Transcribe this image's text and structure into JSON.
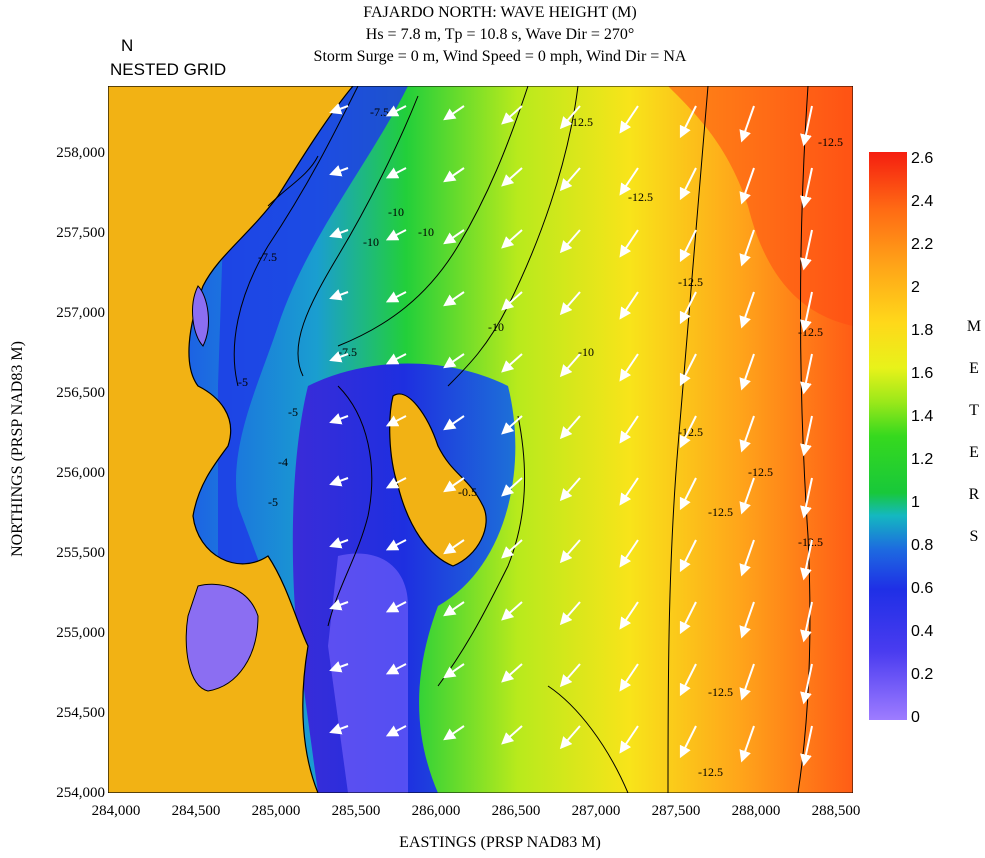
{
  "title": {
    "line1": "FAJARDO NORTH: WAVE HEIGHT (M)",
    "line2": "Hs = 7.8 m, Tp = 10.8 s, Wave Dir = 270°",
    "line3": "Storm Surge = 0 m, Wind Speed = 0 mph, Wind Dir = NA"
  },
  "corner_label": {
    "north": "N",
    "grid": "NESTED GRID"
  },
  "axes": {
    "x_title": "EASTINGS (PRSP NAD83 M)",
    "y_title": "NORTHINGS (PRSP NAD83 M)",
    "x_ticks": [
      "284,000",
      "284,500",
      "285,000",
      "285,500",
      "286,000",
      "286,500",
      "287,000",
      "287,500",
      "288,000",
      "288,500"
    ],
    "y_ticks": [
      "258,000",
      "257,500",
      "257,000",
      "256,500",
      "256,000",
      "255,500",
      "255,000",
      "254,500",
      "254,000"
    ],
    "x_range": [
      283950,
      288600
    ],
    "y_range": [
      254000,
      258420
    ]
  },
  "colorbar": {
    "title_letters": [
      "M",
      "E",
      "T",
      "E",
      "R",
      "S"
    ],
    "ticks": [
      "2.6",
      "2.4",
      "2.2",
      "2",
      "1.8",
      "1.6",
      "1.4",
      "1.2",
      "1",
      "0.8",
      "0.6",
      "0.4",
      "0.2",
      "0"
    ],
    "min": 0,
    "max": 2.6,
    "colors": [
      "#9e7cff",
      "#4a3cf0",
      "#1f2fe6",
      "#1d6ae0",
      "#14b8c0",
      "#18c83a",
      "#36d91e",
      "#9be81a",
      "#e8f21a",
      "#ffd81a",
      "#ffa418",
      "#ff6a14",
      "#f51e10"
    ]
  },
  "contour_labels": [
    "-7.5",
    "-7.5",
    "-10",
    "-10",
    "-10",
    "-10",
    "-12.5",
    "-12.5",
    "-12.5",
    "-12.5",
    "-12.5",
    "-12.5",
    "-12.5",
    "-7.5",
    "-5",
    "-5",
    "-4",
    "-10",
    "-5",
    "-0.5",
    "-12.5",
    "-12.5",
    "-12.5",
    "-12.5"
  ],
  "land_color": "#f2b214"
}
